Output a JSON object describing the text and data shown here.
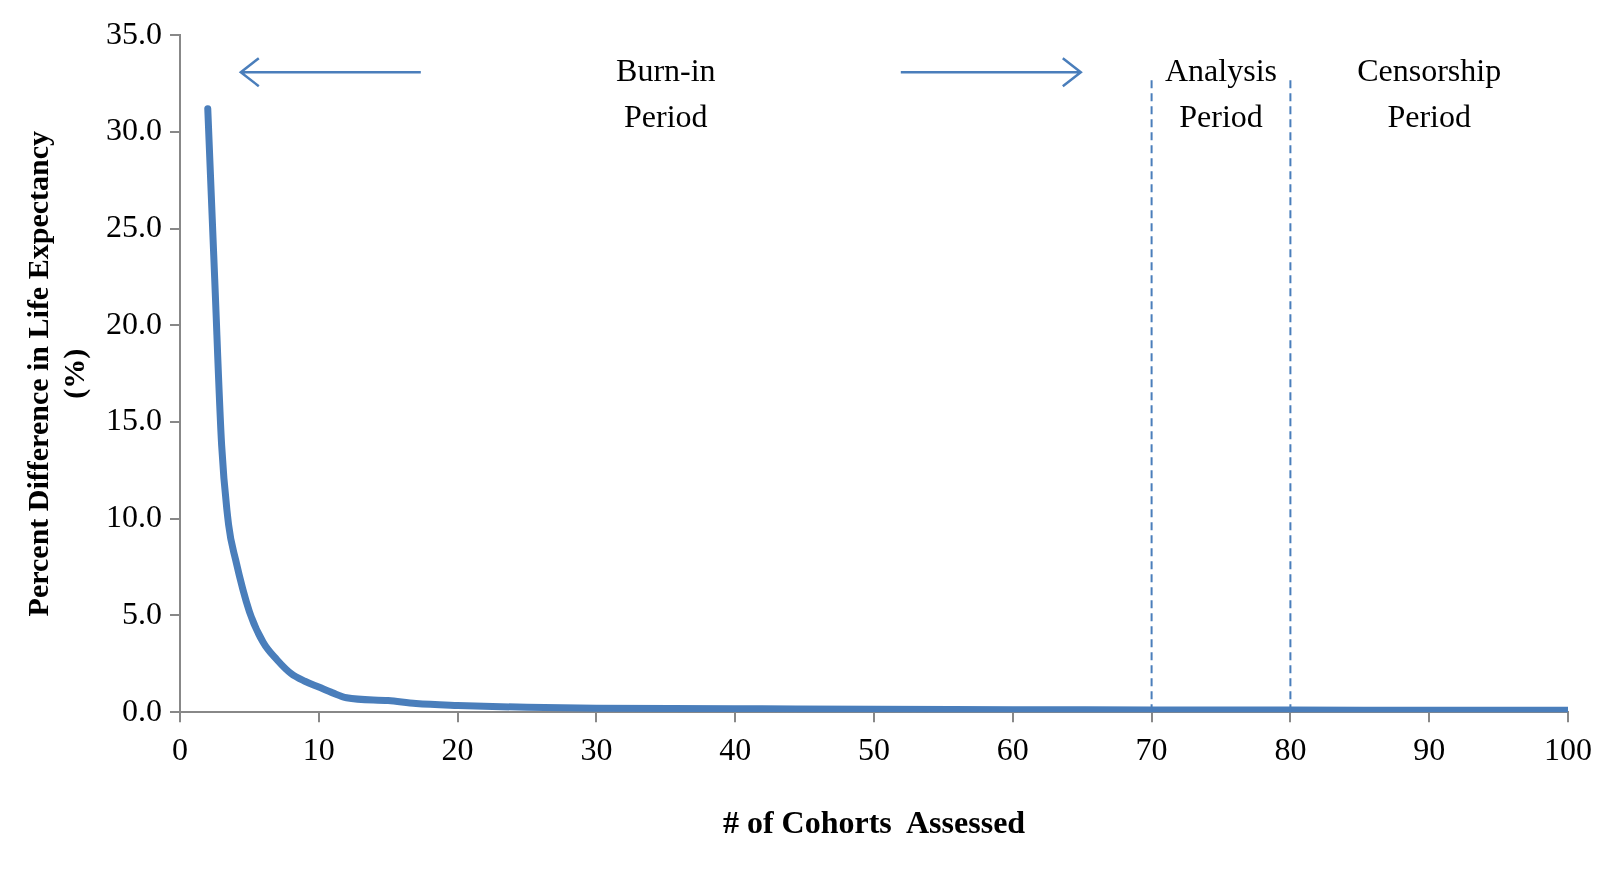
{
  "chart_data": {
    "type": "line",
    "xlabel": "# of Cohorts  Assessed",
    "ylabel": "Percent Difference in Life Expectancy (%)",
    "x": [
      2,
      2.5,
      3,
      3.5,
      4,
      5,
      6,
      7,
      8,
      9,
      10,
      11,
      12,
      15,
      17,
      20,
      25,
      30,
      40,
      50,
      60,
      70,
      80,
      90,
      100
    ],
    "series": [
      {
        "color": "#4a7ebb",
        "values": [
          31.2,
          22.4,
          13.8,
          9.7,
          7.9,
          5.2,
          3.6,
          2.7,
          2.0,
          1.6,
          1.3,
          1.0,
          0.75,
          0.6,
          0.45,
          0.35,
          0.25,
          0.2,
          0.18,
          0.15,
          0.13,
          0.12,
          0.11,
          0.1,
          0.1
        ]
      }
    ],
    "xlim": [
      0,
      100
    ],
    "xticks": [
      0,
      10,
      20,
      30,
      40,
      50,
      60,
      70,
      80,
      90,
      100
    ],
    "ylim": [
      0,
      35
    ],
    "yticks": [
      {
        "value": 0,
        "label": "0.0"
      },
      {
        "value": 5,
        "label": "5.0"
      },
      {
        "value": 10,
        "label": "10.0"
      },
      {
        "value": 15,
        "label": "15.0"
      },
      {
        "value": 20,
        "label": "20.0"
      },
      {
        "value": 25,
        "label": "25.0"
      },
      {
        "value": 30,
        "label": "30.0"
      },
      {
        "value": 35,
        "label": "35.0"
      }
    ],
    "ref_lines": [
      {
        "axis": "x",
        "value": 70,
        "color": "#4a7ebb",
        "line_style": "dashed"
      },
      {
        "axis": "x",
        "value": 80,
        "color": "#4a7ebb",
        "line_style": "dashed"
      }
    ],
    "annotations": [
      "Burn-in Period",
      "Analysis Period",
      "Censorship Period"
    ],
    "grid": false,
    "legend": false,
    "marker": "none",
    "line_style": "solid"
  }
}
